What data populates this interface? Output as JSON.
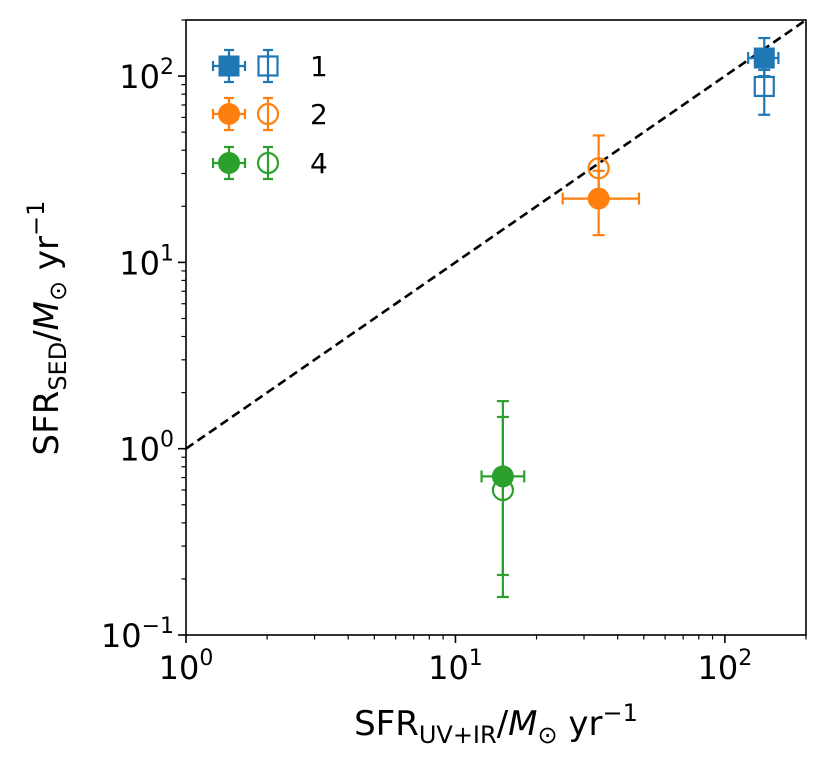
{
  "chart_data": {
    "type": "scatter",
    "xscale": "log",
    "yscale": "log",
    "xlim": [
      1,
      200
    ],
    "ylim": [
      0.1,
      200
    ],
    "xlabel": {
      "main": "SFR",
      "sub": "UV+IR",
      "sep": "/",
      "var": "M",
      "var_sub": "⊙",
      "unit": " yr",
      "unit_sup": "−1"
    },
    "ylabel": {
      "main": "SFR",
      "sub": "SED",
      "sep": "/",
      "var": "M",
      "var_sub": "⊙",
      "unit": " yr",
      "unit_sup": "−1"
    },
    "x_ticks": [
      {
        "value": 1,
        "base": "10",
        "exp": "0"
      },
      {
        "value": 10,
        "base": "10",
        "exp": "1"
      },
      {
        "value": 100,
        "base": "10",
        "exp": "2"
      }
    ],
    "y_ticks": [
      {
        "value": 0.1,
        "base": "10",
        "exp": "−1"
      },
      {
        "value": 1,
        "base": "10",
        "exp": "0"
      },
      {
        "value": 10,
        "base": "10",
        "exp": "1"
      },
      {
        "value": 100,
        "base": "10",
        "exp": "2"
      }
    ],
    "reference_line": {
      "type": "one-to-one",
      "style": "dashed",
      "color": "#000000"
    },
    "legend_position": "top-left",
    "series": [
      {
        "name": "1",
        "color": "#1f77b4",
        "marker": "square",
        "filled": {
          "x": 140,
          "y": 125,
          "xerr": [
            18,
            18
          ],
          "yerr": [
            25,
            35
          ]
        },
        "open": {
          "x": 140,
          "y": 88,
          "xerr": [
            0,
            0
          ],
          "yerr": [
            26,
            20
          ]
        }
      },
      {
        "name": "2",
        "color": "#ff7f0e",
        "marker": "circle",
        "filled": {
          "x": 34,
          "y": 22,
          "xerr": [
            9,
            14
          ],
          "yerr": [
            8,
            9
          ]
        },
        "open": {
          "x": 34,
          "y": 32,
          "xerr": [
            0,
            0
          ],
          "yerr": [
            12,
            16
          ]
        }
      },
      {
        "name": "4",
        "color": "#2ca02c",
        "marker": "circle",
        "filled": {
          "x": 15,
          "y": 0.71,
          "xerr": [
            2.5,
            3
          ],
          "yerr": [
            0.5,
            1.09
          ]
        },
        "open": {
          "x": 15,
          "y": 0.6,
          "xerr": [
            0,
            0
          ],
          "yerr": [
            0.44,
            0.88
          ]
        }
      }
    ]
  }
}
